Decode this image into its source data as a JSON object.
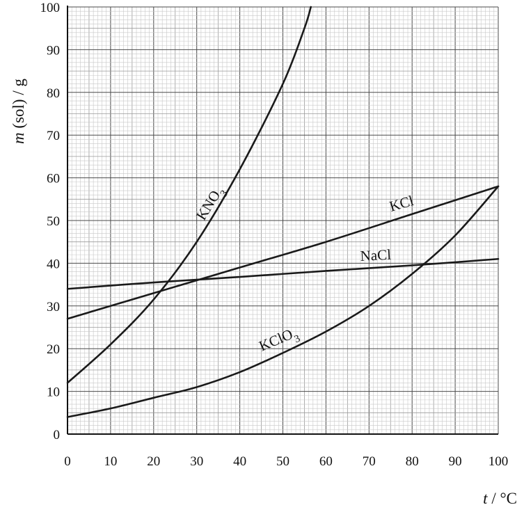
{
  "chart_data": {
    "type": "line",
    "xlabel_var": "t",
    "xlabel_unit": " / °C",
    "ylabel_var": "m",
    "ylabel_unit": " (sol) / g",
    "xlim": [
      0,
      100
    ],
    "ylim": [
      0,
      100
    ],
    "grid": true,
    "xticks": [
      "0",
      "10",
      "20",
      "30",
      "40",
      "50",
      "60",
      "70",
      "80",
      "90",
      "100"
    ],
    "yticks": [
      "0",
      "10",
      "20",
      "30",
      "40",
      "50",
      "60",
      "70",
      "80",
      "90",
      "100"
    ],
    "series": [
      {
        "name": "KNO3",
        "label_main": "KNO",
        "label_sub": "3",
        "x": [
          0,
          10,
          20,
          30,
          40,
          50,
          55,
          56.5
        ],
        "y": [
          12,
          21,
          31.5,
          45,
          62,
          82,
          95,
          100
        ]
      },
      {
        "name": "KCl",
        "label_main": "KCl",
        "label_sub": "",
        "x": [
          0,
          20,
          40,
          60,
          80,
          100
        ],
        "y": [
          27,
          33,
          39,
          45,
          51.5,
          58
        ]
      },
      {
        "name": "NaCl",
        "label_main": "NaCl",
        "label_sub": "",
        "x": [
          0,
          20,
          40,
          60,
          80,
          100
        ],
        "y": [
          34,
          35.5,
          36.8,
          38.2,
          39.5,
          41
        ]
      },
      {
        "name": "KClO3",
        "label_main": "KClO",
        "label_sub": "3",
        "x": [
          0,
          10,
          20,
          30,
          40,
          50,
          60,
          70,
          80,
          90,
          100
        ],
        "y": [
          4,
          6,
          8.5,
          11,
          14.5,
          19,
          24,
          30,
          37.5,
          46.5,
          58
        ]
      }
    ]
  }
}
